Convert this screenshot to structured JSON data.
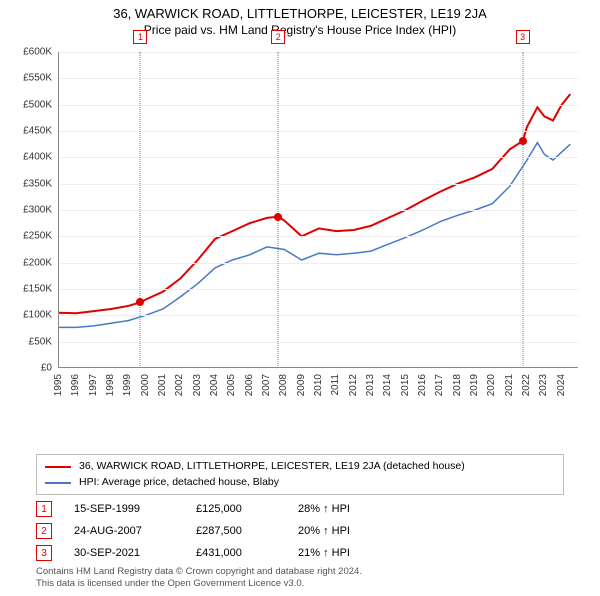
{
  "title": "36, WARWICK ROAD, LITTLETHORPE, LEICESTER, LE19 2JA",
  "subtitle": "Price paid vs. HM Land Registry's House Price Index (HPI)",
  "chart": {
    "type": "line",
    "background_color": "#ffffff",
    "grid_color": "#eeeeee",
    "axis_color": "#888888",
    "label_fontsize": 10,
    "xlim": [
      1995,
      2025
    ],
    "ylim": [
      0,
      600000
    ],
    "ytick_step": 50000,
    "yticks": [
      "£0",
      "£50K",
      "£100K",
      "£150K",
      "£200K",
      "£250K",
      "£300K",
      "£350K",
      "£400K",
      "£450K",
      "£500K",
      "£550K",
      "£600K"
    ],
    "xticks": [
      1995,
      1996,
      1997,
      1998,
      1999,
      2000,
      2001,
      2002,
      2003,
      2004,
      2005,
      2006,
      2007,
      2008,
      2009,
      2010,
      2011,
      2012,
      2013,
      2014,
      2015,
      2016,
      2017,
      2018,
      2019,
      2020,
      2021,
      2022,
      2023,
      2024
    ],
    "series": [
      {
        "name": "property",
        "label": "36, WARWICK ROAD, LITTLETHORPE, LEICESTER, LE19 2JA (detached house)",
        "color": "#e00000",
        "line_width": 2,
        "data": [
          [
            1995,
            105000
          ],
          [
            1996,
            104000
          ],
          [
            1997,
            108000
          ],
          [
            1998,
            112000
          ],
          [
            1999,
            118000
          ],
          [
            1999.7,
            125000
          ],
          [
            2000,
            130000
          ],
          [
            2001,
            145000
          ],
          [
            2002,
            170000
          ],
          [
            2003,
            205000
          ],
          [
            2004,
            245000
          ],
          [
            2005,
            260000
          ],
          [
            2006,
            275000
          ],
          [
            2007,
            285000
          ],
          [
            2007.65,
            287500
          ],
          [
            2008,
            280000
          ],
          [
            2009,
            250000
          ],
          [
            2010,
            265000
          ],
          [
            2011,
            260000
          ],
          [
            2012,
            262000
          ],
          [
            2013,
            270000
          ],
          [
            2014,
            285000
          ],
          [
            2015,
            300000
          ],
          [
            2016,
            318000
          ],
          [
            2017,
            335000
          ],
          [
            2018,
            350000
          ],
          [
            2019,
            362000
          ],
          [
            2020,
            378000
          ],
          [
            2021,
            415000
          ],
          [
            2021.75,
            431000
          ],
          [
            2022,
            458000
          ],
          [
            2022.6,
            495000
          ],
          [
            2023,
            478000
          ],
          [
            2023.5,
            470000
          ],
          [
            2024,
            500000
          ],
          [
            2024.5,
            520000
          ]
        ]
      },
      {
        "name": "hpi",
        "label": "HPI: Average price, detached house, Blaby",
        "color": "#4a78c4",
        "line_width": 1.5,
        "data": [
          [
            1995,
            77000
          ],
          [
            1996,
            77000
          ],
          [
            1997,
            80000
          ],
          [
            1998,
            85000
          ],
          [
            1999,
            90000
          ],
          [
            2000,
            100000
          ],
          [
            2001,
            112000
          ],
          [
            2002,
            135000
          ],
          [
            2003,
            160000
          ],
          [
            2004,
            190000
          ],
          [
            2005,
            205000
          ],
          [
            2006,
            215000
          ],
          [
            2007,
            230000
          ],
          [
            2008,
            225000
          ],
          [
            2009,
            205000
          ],
          [
            2010,
            218000
          ],
          [
            2011,
            215000
          ],
          [
            2012,
            218000
          ],
          [
            2013,
            222000
          ],
          [
            2014,
            235000
          ],
          [
            2015,
            248000
          ],
          [
            2016,
            262000
          ],
          [
            2017,
            278000
          ],
          [
            2018,
            290000
          ],
          [
            2019,
            300000
          ],
          [
            2020,
            312000
          ],
          [
            2021,
            345000
          ],
          [
            2022,
            395000
          ],
          [
            2022.6,
            428000
          ],
          [
            2023,
            406000
          ],
          [
            2023.5,
            395000
          ],
          [
            2024,
            410000
          ],
          [
            2024.5,
            425000
          ]
        ]
      }
    ],
    "markers": [
      {
        "n": "1",
        "x": 1999.7,
        "y": 125000,
        "dot_color": "#e00000"
      },
      {
        "n": "2",
        "x": 2007.65,
        "y": 287500,
        "dot_color": "#e00000"
      },
      {
        "n": "3",
        "x": 2021.75,
        "y": 431000,
        "dot_color": "#e00000"
      }
    ]
  },
  "legend": {
    "series1_color": "#e00000",
    "series2_color": "#4a78c4"
  },
  "entries": [
    {
      "n": "1",
      "date": "15-SEP-1999",
      "price": "£125,000",
      "pct": "28% ↑ HPI"
    },
    {
      "n": "2",
      "date": "24-AUG-2007",
      "price": "£287,500",
      "pct": "20% ↑ HPI"
    },
    {
      "n": "3",
      "date": "30-SEP-2021",
      "price": "£431,000",
      "pct": "21% ↑ HPI"
    }
  ],
  "footer": {
    "line1": "Contains HM Land Registry data © Crown copyright and database right 2024.",
    "line2": "This data is licensed under the Open Government Licence v3.0."
  }
}
